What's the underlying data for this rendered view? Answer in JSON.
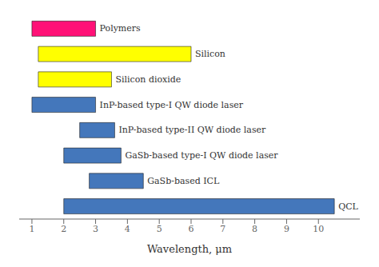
{
  "chart_data": {
    "type": "bar",
    "orientation": "horizontal",
    "xlabel": "Wavelength, μm",
    "categories": [
      "Polymers",
      "Silicon",
      "Silicon dioxide",
      "InP-based type-I QW diode laser",
      "InP-based type-II QW diode laser",
      "GaSb-based type-I QW diode laser",
      "GaSb-based ICL",
      "QCL"
    ],
    "values": [
      [
        1.0,
        3.0
      ],
      [
        1.2,
        6.0
      ],
      [
        1.2,
        3.5
      ],
      [
        1.0,
        3.0
      ],
      [
        2.5,
        3.6
      ],
      [
        2.0,
        3.8
      ],
      [
        2.8,
        4.5
      ],
      [
        2.0,
        10.5
      ]
    ],
    "colors": [
      "#FF1177",
      "#FFFF00",
      "#FFFF00",
      "#4477BB",
      "#4477BB",
      "#4477BB",
      "#4477BB",
      "#4477BB"
    ],
    "xlim": [
      0.6,
      11.3
    ],
    "xticks": [
      1,
      2,
      3,
      4,
      5,
      6,
      7,
      8,
      9,
      10
    ],
    "tick_labels": "x"
  }
}
